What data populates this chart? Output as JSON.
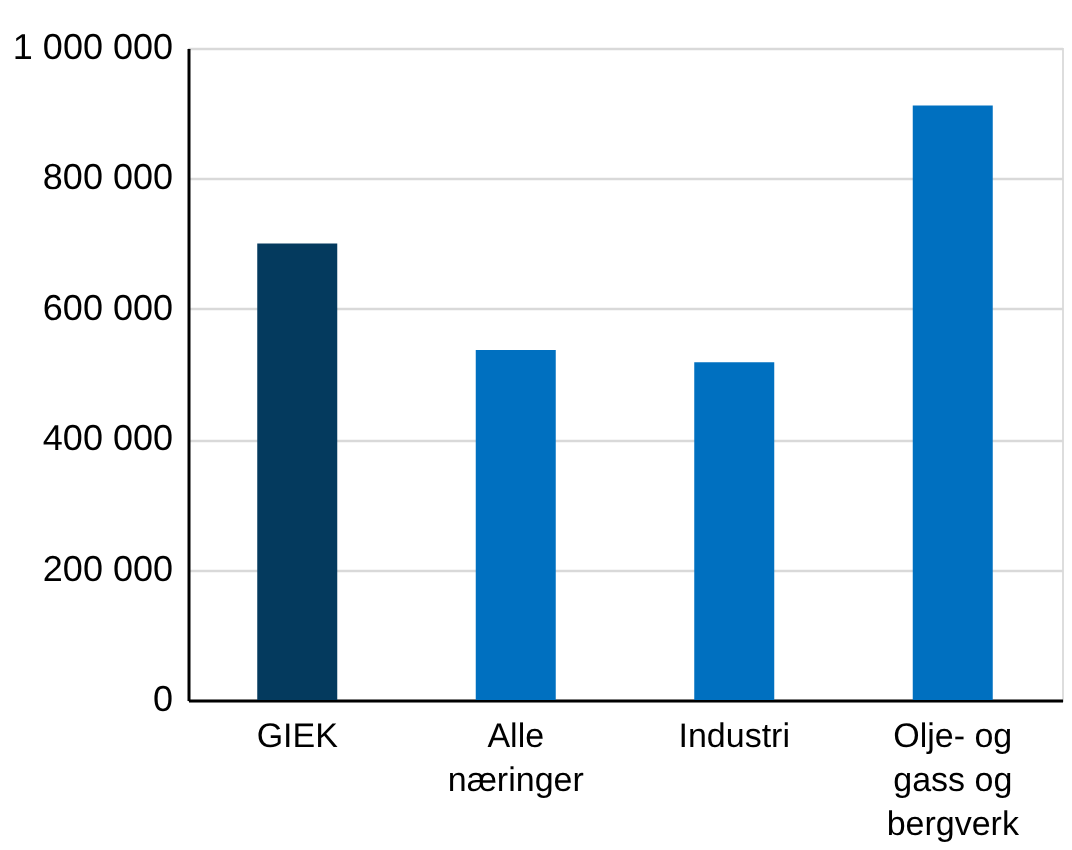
{
  "chart_data": {
    "type": "bar",
    "categories": [
      "GIEK",
      "Alle næringer",
      "Industri",
      "Olje- og gass og bergverk"
    ],
    "values": [
      700000,
      537000,
      518000,
      912000
    ],
    "colors": [
      "#043a5e",
      "#0070c0",
      "#0070c0",
      "#0070c0"
    ],
    "ylim": [
      0,
      1000000
    ],
    "yticks": [
      {
        "value": 0,
        "label": "0"
      },
      {
        "value": 200000,
        "label": "200 000"
      },
      {
        "value": 400000,
        "label": "400 000"
      },
      {
        "value": 600000,
        "label": "600 000"
      },
      {
        "value": 800000,
        "label": "800 000"
      },
      {
        "value": 1000000,
        "label": "1 000 000"
      }
    ],
    "grid": "y"
  }
}
